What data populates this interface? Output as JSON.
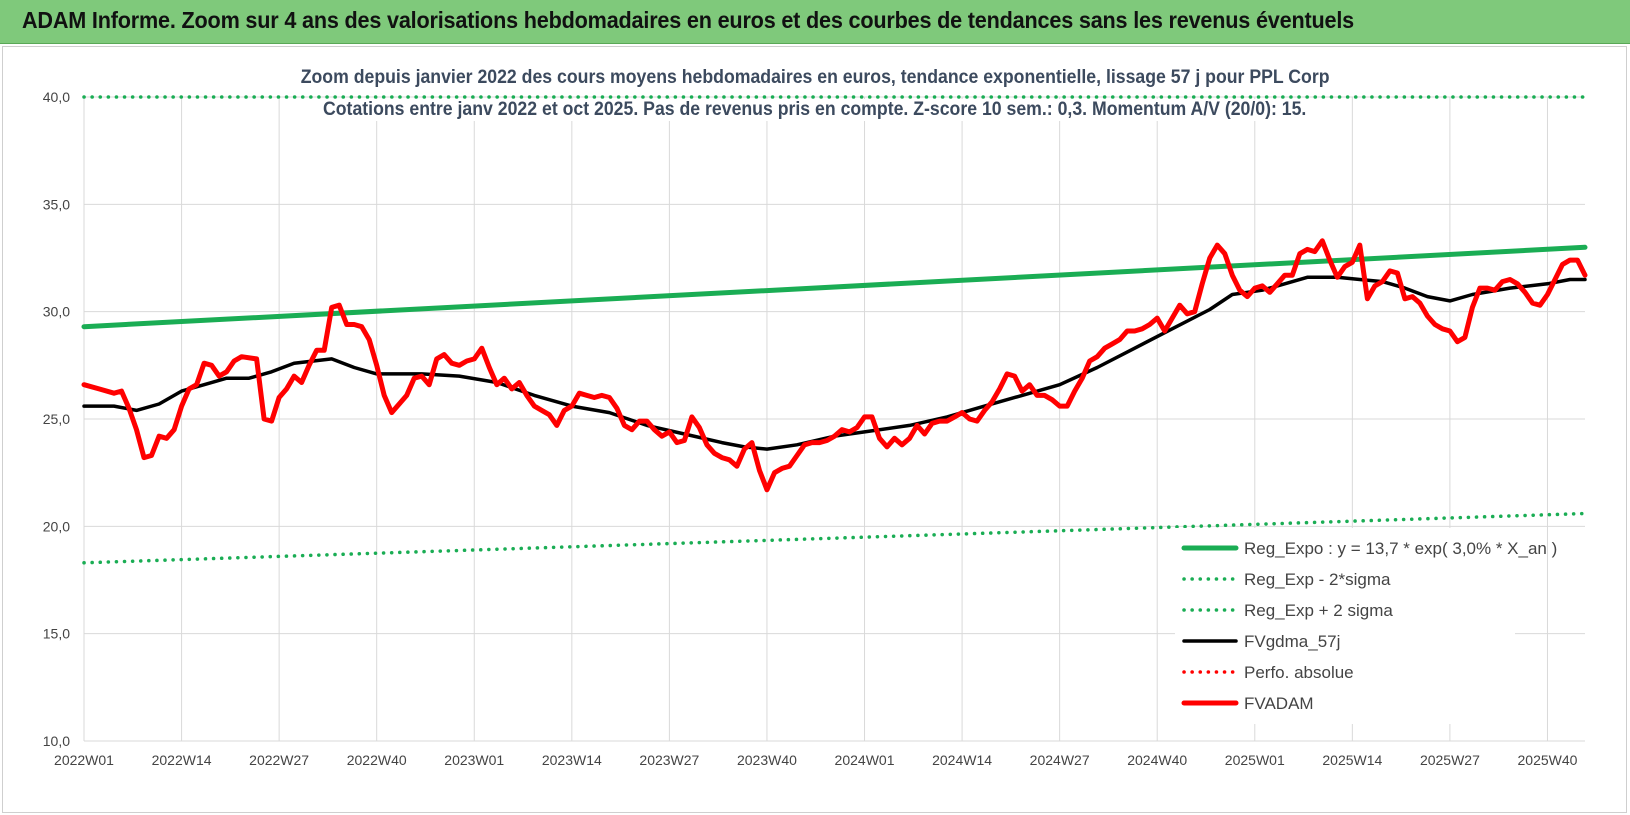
{
  "banner": {
    "title": "ADAM Informe. Zoom sur 4 ans des valorisations hebdomadaires en euros et des courbes de tendances sans les revenus éventuels"
  },
  "chart_data": {
    "type": "line",
    "title": "Zoom depuis janvier 2022 des cours moyens hebdomadaires en euros, tendance exponentielle, lissage 57 j pour PPL Corp",
    "subtitle": "Cotations entre janv 2022 et oct 2025. Pas de revenus pris en compte. Z-score 10 sem.: 0,3. Momentum A/V (20/0): 15.",
    "xlabel": "",
    "ylabel": "",
    "ylim": [
      10,
      40
    ],
    "yticks": [
      "10,0",
      "15,0",
      "20,0",
      "25,0",
      "30,0",
      "35,0",
      "40,0"
    ],
    "grid": true,
    "legend_position": "bottom-right",
    "x_tick_labels": [
      "2022W01",
      "2022W14",
      "2022W27",
      "2022W40",
      "2023W01",
      "2023W14",
      "2023W27",
      "2023W40",
      "2024W01",
      "2024W14",
      "2024W27",
      "2024W40",
      "2025W01",
      "2025W14",
      "2025W27",
      "2025W40"
    ],
    "x_tick_weeks": [
      0,
      13,
      26,
      39,
      52,
      65,
      78,
      91,
      104,
      117,
      130,
      143,
      156,
      169,
      182,
      195
    ],
    "x_range_weeks": [
      0,
      200
    ],
    "series": [
      {
        "name": "Reg_Expo : y = 13,7 * exp( 3,0% *  X_an )",
        "color": "#1aad54",
        "style": "solid-thick",
        "points": [
          [
            0,
            29.3
          ],
          [
            200,
            33.0
          ]
        ]
      },
      {
        "name": "Reg_Exp - 2*sigma",
        "color": "#1aad54",
        "style": "dotted",
        "points": [
          [
            0,
            18.3
          ],
          [
            200,
            20.6
          ]
        ]
      },
      {
        "name": "Reg_Exp + 2 sigma",
        "color": "#1aad54",
        "style": "dotted",
        "points": [
          [
            0,
            40.0
          ],
          [
            200,
            40.0
          ]
        ]
      },
      {
        "name": "FVgdma_57j",
        "color": "#000000",
        "style": "solid",
        "points": [
          [
            0,
            25.6
          ],
          [
            4,
            25.6
          ],
          [
            7,
            25.4
          ],
          [
            10,
            25.7
          ],
          [
            13,
            26.3
          ],
          [
            16,
            26.6
          ],
          [
            19,
            26.9
          ],
          [
            22,
            26.9
          ],
          [
            25,
            27.2
          ],
          [
            28,
            27.6
          ],
          [
            33,
            27.8
          ],
          [
            36,
            27.4
          ],
          [
            39,
            27.1
          ],
          [
            45,
            27.1
          ],
          [
            50,
            27.0
          ],
          [
            55,
            26.7
          ],
          [
            60,
            26.1
          ],
          [
            65,
            25.6
          ],
          [
            70,
            25.3
          ],
          [
            75,
            24.7
          ],
          [
            80,
            24.3
          ],
          [
            85,
            23.9
          ],
          [
            88,
            23.7
          ],
          [
            91,
            23.6
          ],
          [
            95,
            23.8
          ],
          [
            100,
            24.2
          ],
          [
            104,
            24.4
          ],
          [
            110,
            24.7
          ],
          [
            115,
            25.1
          ],
          [
            120,
            25.6
          ],
          [
            125,
            26.1
          ],
          [
            130,
            26.6
          ],
          [
            135,
            27.4
          ],
          [
            140,
            28.3
          ],
          [
            145,
            29.2
          ],
          [
            150,
            30.1
          ],
          [
            153,
            30.8
          ],
          [
            157,
            31.0
          ],
          [
            160,
            31.3
          ],
          [
            163,
            31.6
          ],
          [
            167,
            31.6
          ],
          [
            170,
            31.5
          ],
          [
            173,
            31.4
          ],
          [
            176,
            31.1
          ],
          [
            179,
            30.7
          ],
          [
            182,
            30.5
          ],
          [
            185,
            30.8
          ],
          [
            190,
            31.1
          ],
          [
            195,
            31.3
          ],
          [
            198,
            31.5
          ],
          [
            200,
            31.5
          ]
        ]
      },
      {
        "name": "Perfo. absolue",
        "color": "#ff0000",
        "style": "dotted",
        "points": []
      },
      {
        "name": "FVADAM",
        "color": "#ff0000",
        "style": "solid-thick",
        "points": [
          [
            0,
            26.6
          ],
          [
            2,
            26.4
          ],
          [
            4,
            26.2
          ],
          [
            5,
            26.3
          ],
          [
            6,
            25.5
          ],
          [
            7,
            24.5
          ],
          [
            8,
            23.2
          ],
          [
            9,
            23.3
          ],
          [
            10,
            24.2
          ],
          [
            11,
            24.1
          ],
          [
            12,
            24.5
          ],
          [
            13,
            25.6
          ],
          [
            14,
            26.4
          ],
          [
            15,
            26.6
          ],
          [
            16,
            27.6
          ],
          [
            17,
            27.5
          ],
          [
            18,
            27.0
          ],
          [
            19,
            27.2
          ],
          [
            20,
            27.7
          ],
          [
            21,
            27.9
          ],
          [
            23,
            27.8
          ],
          [
            24,
            25.0
          ],
          [
            25,
            24.9
          ],
          [
            26,
            26.0
          ],
          [
            27,
            26.4
          ],
          [
            28,
            27.0
          ],
          [
            29,
            26.7
          ],
          [
            30,
            27.5
          ],
          [
            31,
            28.2
          ],
          [
            32,
            28.2
          ],
          [
            33,
            30.2
          ],
          [
            34,
            30.3
          ],
          [
            35,
            29.4
          ],
          [
            36,
            29.4
          ],
          [
            37,
            29.3
          ],
          [
            38,
            28.7
          ],
          [
            39,
            27.5
          ],
          [
            40,
            26.1
          ],
          [
            41,
            25.3
          ],
          [
            42,
            25.7
          ],
          [
            43,
            26.1
          ],
          [
            44,
            26.9
          ],
          [
            45,
            27.0
          ],
          [
            46,
            26.6
          ],
          [
            47,
            27.8
          ],
          [
            48,
            28.0
          ],
          [
            49,
            27.6
          ],
          [
            50,
            27.5
          ],
          [
            51,
            27.7
          ],
          [
            52,
            27.8
          ],
          [
            53,
            28.3
          ],
          [
            54,
            27.4
          ],
          [
            55,
            26.6
          ],
          [
            56,
            26.9
          ],
          [
            57,
            26.4
          ],
          [
            58,
            26.7
          ],
          [
            59,
            26.1
          ],
          [
            60,
            25.6
          ],
          [
            61,
            25.4
          ],
          [
            62,
            25.2
          ],
          [
            63,
            24.7
          ],
          [
            64,
            25.4
          ],
          [
            65,
            25.6
          ],
          [
            66,
            26.2
          ],
          [
            67,
            26.1
          ],
          [
            68,
            26.0
          ],
          [
            69,
            26.1
          ],
          [
            70,
            26.0
          ],
          [
            71,
            25.5
          ],
          [
            72,
            24.7
          ],
          [
            73,
            24.5
          ],
          [
            74,
            24.9
          ],
          [
            75,
            24.9
          ],
          [
            76,
            24.5
          ],
          [
            77,
            24.2
          ],
          [
            78,
            24.4
          ],
          [
            79,
            23.9
          ],
          [
            80,
            24.0
          ],
          [
            81,
            25.1
          ],
          [
            82,
            24.6
          ],
          [
            83,
            23.8
          ],
          [
            84,
            23.4
          ],
          [
            85,
            23.2
          ],
          [
            86,
            23.1
          ],
          [
            87,
            22.8
          ],
          [
            88,
            23.6
          ],
          [
            89,
            23.9
          ],
          [
            90,
            22.6
          ],
          [
            91,
            21.7
          ],
          [
            92,
            22.5
          ],
          [
            93,
            22.7
          ],
          [
            94,
            22.8
          ],
          [
            95,
            23.3
          ],
          [
            96,
            23.8
          ],
          [
            97,
            23.9
          ],
          [
            98,
            23.9
          ],
          [
            99,
            24.0
          ],
          [
            100,
            24.2
          ],
          [
            101,
            24.5
          ],
          [
            102,
            24.4
          ],
          [
            103,
            24.6
          ],
          [
            104,
            25.1
          ],
          [
            105,
            25.1
          ],
          [
            106,
            24.1
          ],
          [
            107,
            23.7
          ],
          [
            108,
            24.1
          ],
          [
            109,
            23.8
          ],
          [
            110,
            24.1
          ],
          [
            111,
            24.7
          ],
          [
            112,
            24.3
          ],
          [
            113,
            24.8
          ],
          [
            114,
            24.9
          ],
          [
            115,
            24.9
          ],
          [
            116,
            25.1
          ],
          [
            117,
            25.3
          ],
          [
            118,
            25.0
          ],
          [
            119,
            24.9
          ],
          [
            120,
            25.4
          ],
          [
            121,
            25.8
          ],
          [
            122,
            26.4
          ],
          [
            123,
            27.1
          ],
          [
            124,
            27.0
          ],
          [
            125,
            26.3
          ],
          [
            126,
            26.6
          ],
          [
            127,
            26.1
          ],
          [
            128,
            26.1
          ],
          [
            129,
            25.9
          ],
          [
            130,
            25.6
          ],
          [
            131,
            25.6
          ],
          [
            132,
            26.3
          ],
          [
            133,
            26.9
          ],
          [
            134,
            27.7
          ],
          [
            135,
            27.9
          ],
          [
            136,
            28.3
          ],
          [
            137,
            28.5
          ],
          [
            138,
            28.7
          ],
          [
            139,
            29.1
          ],
          [
            140,
            29.1
          ],
          [
            141,
            29.2
          ],
          [
            142,
            29.4
          ],
          [
            143,
            29.7
          ],
          [
            144,
            29.1
          ],
          [
            145,
            29.7
          ],
          [
            146,
            30.3
          ],
          [
            147,
            29.9
          ],
          [
            148,
            30.0
          ],
          [
            149,
            31.3
          ],
          [
            150,
            32.5
          ],
          [
            151,
            33.1
          ],
          [
            152,
            32.7
          ],
          [
            153,
            31.7
          ],
          [
            154,
            31.0
          ],
          [
            155,
            30.7
          ],
          [
            156,
            31.1
          ],
          [
            157,
            31.2
          ],
          [
            158,
            30.9
          ],
          [
            159,
            31.3
          ],
          [
            160,
            31.7
          ],
          [
            161,
            31.7
          ],
          [
            162,
            32.7
          ],
          [
            163,
            32.9
          ],
          [
            164,
            32.8
          ],
          [
            165,
            33.3
          ],
          [
            166,
            32.4
          ],
          [
            167,
            31.6
          ],
          [
            168,
            32.1
          ],
          [
            169,
            32.3
          ],
          [
            170,
            33.1
          ],
          [
            171,
            30.6
          ],
          [
            172,
            31.2
          ],
          [
            173,
            31.4
          ],
          [
            174,
            31.9
          ],
          [
            175,
            31.8
          ],
          [
            176,
            30.6
          ],
          [
            177,
            30.7
          ],
          [
            178,
            30.4
          ],
          [
            179,
            29.8
          ],
          [
            180,
            29.4
          ],
          [
            181,
            29.2
          ],
          [
            182,
            29.1
          ],
          [
            183,
            28.6
          ],
          [
            184,
            28.8
          ],
          [
            185,
            30.2
          ],
          [
            186,
            31.1
          ],
          [
            187,
            31.1
          ],
          [
            188,
            31.0
          ],
          [
            189,
            31.4
          ],
          [
            190,
            31.5
          ],
          [
            191,
            31.3
          ],
          [
            192,
            30.9
          ],
          [
            193,
            30.4
          ],
          [
            194,
            30.3
          ],
          [
            195,
            30.8
          ],
          [
            196,
            31.5
          ],
          [
            197,
            32.2
          ],
          [
            198,
            32.4
          ],
          [
            199,
            32.4
          ],
          [
            200,
            31.7
          ]
        ]
      }
    ]
  }
}
